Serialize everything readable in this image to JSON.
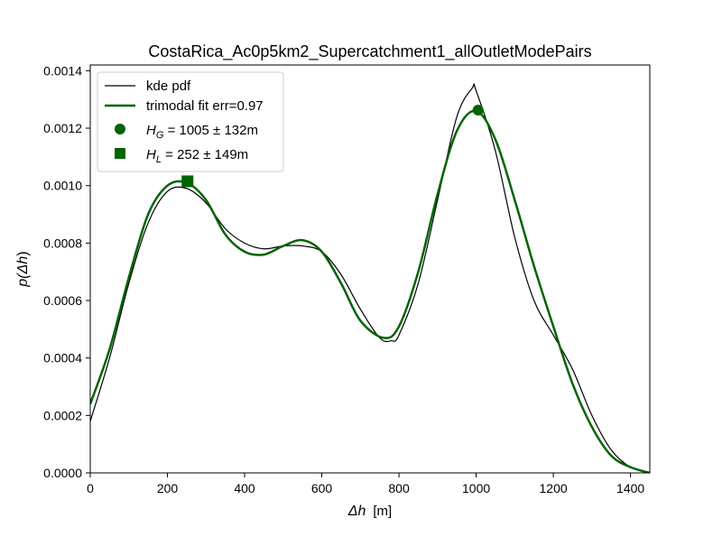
{
  "chart_data": {
    "type": "line",
    "title": "CostaRica_Ac0p5km2_Supercatchment1_allOutletModePairs",
    "xlabel_main": "Δh",
    "xlabel_unit": "[m]",
    "ylabel_pre": "p(",
    "ylabel_main": "Δh",
    "ylabel_post": ")",
    "xlim": [
      0,
      1450
    ],
    "ylim": [
      0,
      0.00142
    ],
    "x_ticks": [
      0,
      200,
      400,
      600,
      800,
      1000,
      1200,
      1400
    ],
    "x_tick_labels": [
      "0",
      "200",
      "400",
      "600",
      "800",
      "1000",
      "1200",
      "1400"
    ],
    "y_ticks": [
      0,
      0.0002,
      0.0004,
      0.0006,
      0.0008,
      0.001,
      0.0012,
      0.0014
    ],
    "y_tick_labels": [
      "0.0000",
      "0.0002",
      "0.0004",
      "0.0006",
      "0.0008",
      "0.0010",
      "0.0012",
      "0.0014"
    ],
    "legend_position": "top-left",
    "series": [
      {
        "name": "kde pdf",
        "color": "#000000",
        "x": [
          0,
          50,
          100,
          150,
          200,
          250,
          300,
          350,
          400,
          450,
          500,
          550,
          600,
          650,
          700,
          750,
          780,
          800,
          850,
          900,
          950,
          990,
          1000,
          1050,
          1100,
          1150,
          1200,
          1250,
          1300,
          1350,
          1400,
          1450
        ],
        "y": [
          0.00018,
          0.0004,
          0.00066,
          0.00087,
          0.00098,
          0.00099,
          0.00094,
          0.00085,
          0.0008,
          0.00078,
          0.00079,
          0.00079,
          0.00077,
          0.00069,
          0.00057,
          0.00047,
          0.00046,
          0.00048,
          0.00066,
          0.00095,
          0.00124,
          0.00134,
          0.00133,
          0.00112,
          0.00082,
          0.0006,
          0.00048,
          0.00036,
          0.0002,
          8e-05,
          2e-05,
          0.0
        ]
      },
      {
        "name": "trimodal fit err=0.97",
        "color": "#006400",
        "x": [
          0,
          50,
          100,
          150,
          200,
          250,
          300,
          350,
          400,
          450,
          500,
          550,
          600,
          650,
          700,
          760,
          800,
          850,
          900,
          950,
          1000,
          1050,
          1100,
          1150,
          1200,
          1250,
          1300,
          1350,
          1400,
          1450
        ],
        "y": [
          0.00024,
          0.00043,
          0.00068,
          0.0009,
          0.001,
          0.00101,
          0.00095,
          0.00083,
          0.00077,
          0.00076,
          0.00079,
          0.00081,
          0.00077,
          0.00066,
          0.00053,
          0.00047,
          0.00051,
          0.0007,
          0.00097,
          0.00119,
          0.00126,
          0.00116,
          0.00095,
          0.00072,
          0.00051,
          0.00031,
          0.00016,
          6e-05,
          2e-05,
          0.0
        ]
      }
    ],
    "markers": [
      {
        "name": "H_G",
        "shape": "circle",
        "x": 1005,
        "y": 0.001263,
        "color": "#006400",
        "label_var": "H",
        "label_sub": "G",
        "label_rest": " = 1005 ± 132m"
      },
      {
        "name": "H_L",
        "shape": "square",
        "x": 252,
        "y": 0.001015,
        "color": "#006400",
        "label_var": "H",
        "label_sub": "L",
        "label_rest": " = 252 ± 149m"
      }
    ]
  }
}
